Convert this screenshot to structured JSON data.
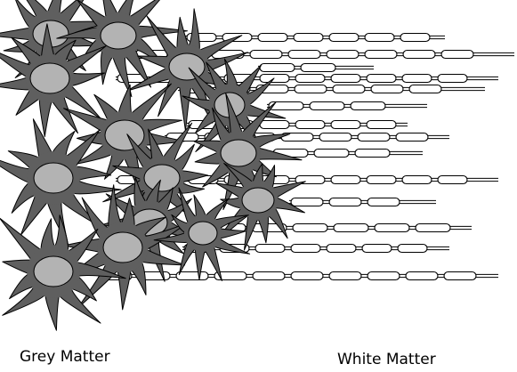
{
  "labels": {
    "grey_matter": "Grey Matter",
    "white_matter": "White Matter"
  },
  "colors": {
    "cell_body": "#5f5f5f",
    "nucleus": "#b3b3b3",
    "myelin": "#ffffff",
    "outline": "#000000",
    "background": "#ffffff"
  }
}
